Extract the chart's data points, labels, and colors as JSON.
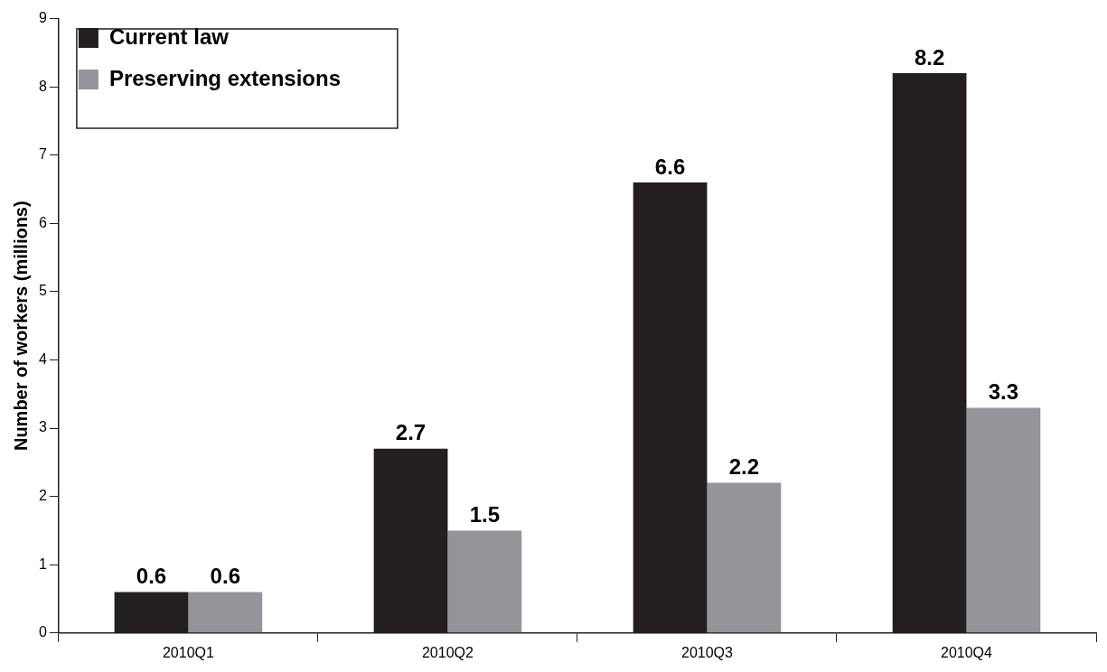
{
  "chart_data": {
    "type": "bar",
    "ylabel": "Number of workers (millions)",
    "categories": [
      "2010Q1",
      "2010Q2",
      "2010Q3",
      "2010Q4"
    ],
    "series": [
      {
        "name": "Current law",
        "color": "#231f20",
        "values": [
          0.6,
          2.7,
          6.6,
          8.2
        ]
      },
      {
        "name": "Preserving extensions",
        "color": "#939598",
        "values": [
          0.6,
          1.5,
          2.2,
          3.3
        ]
      }
    ],
    "ylim": [
      0,
      9
    ],
    "yticks": [
      0,
      1,
      2,
      3,
      4,
      5,
      6,
      7,
      8,
      9
    ],
    "grid": false,
    "legend": "top left",
    "data_labels": true
  }
}
